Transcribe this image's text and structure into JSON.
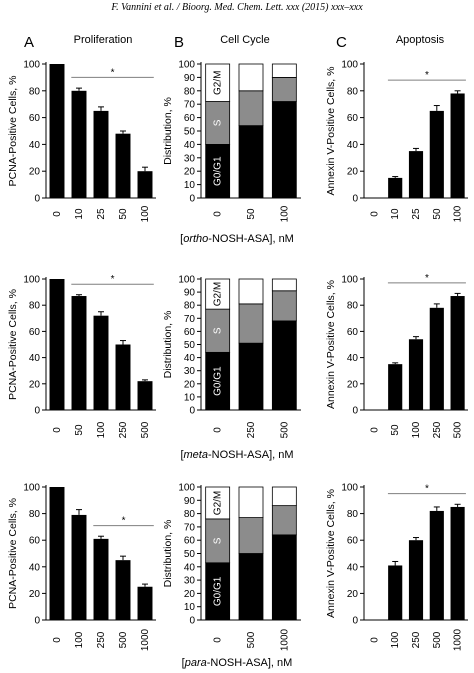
{
  "header": "F. Vannini et al. / Bioorg. Med. Chem. Lett. xxx (2015) xxx–xxx",
  "panel_letters": [
    "A",
    "B",
    "C"
  ],
  "column_titles": [
    "Proliferation",
    "Cell Cycle",
    "Apoptosis"
  ],
  "colors": {
    "bar": "#000000",
    "s_phase": "#8c8c8c",
    "g2m": "#ffffff",
    "line": "#7f7f7f"
  },
  "stack_labels": {
    "g2m": "G2/M",
    "s": "S",
    "g0g1": "G0/G1"
  },
  "significance": "*",
  "chart_data": [
    {
      "type": "bar",
      "row": 0,
      "col": 0,
      "ylabel": "PCNA-Positive Cells, %",
      "ylim": [
        0,
        100
      ],
      "yticks": [
        0,
        20,
        40,
        60,
        80,
        100
      ],
      "categories": [
        "0",
        "10",
        "25",
        "50",
        "100"
      ],
      "values": [
        100,
        80,
        65,
        48,
        20
      ],
      "errors": [
        0,
        2,
        3,
        2,
        3
      ],
      "sig_from": 1
    },
    {
      "type": "stacked_bar",
      "row": 0,
      "col": 1,
      "ylabel": "Distribution, %",
      "ylim": [
        0,
        100
      ],
      "yticks": [
        0,
        10,
        20,
        30,
        40,
        50,
        60,
        70,
        80,
        90,
        100
      ],
      "categories": [
        "0",
        "50",
        "100"
      ],
      "series": [
        {
          "name": "G0/G1",
          "values": [
            40,
            54,
            72
          ]
        },
        {
          "name": "S",
          "values": [
            32,
            26,
            18
          ]
        },
        {
          "name": "G2/M",
          "values": [
            28,
            20,
            10
          ]
        }
      ]
    },
    {
      "type": "bar",
      "row": 0,
      "col": 2,
      "ylabel": "Annexin V-Positive Cells, %",
      "ylim": [
        0,
        100
      ],
      "yticks": [
        0,
        20,
        40,
        60,
        80,
        100
      ],
      "categories": [
        "0",
        "10",
        "25",
        "50",
        "100"
      ],
      "values": [
        0,
        15,
        35,
        65,
        78
      ],
      "errors": [
        0,
        1,
        2,
        4,
        2
      ],
      "sig_from": 1
    },
    {
      "type": "bar",
      "row": 1,
      "col": 0,
      "ylabel": "PCNA-Positive Cells, %",
      "ylim": [
        0,
        100
      ],
      "yticks": [
        0,
        20,
        40,
        60,
        80,
        100
      ],
      "categories": [
        "0",
        "50",
        "100",
        "250",
        "500"
      ],
      "values": [
        100,
        87,
        72,
        50,
        22
      ],
      "errors": [
        0,
        1,
        3,
        3,
        1
      ],
      "sig_from": 1
    },
    {
      "type": "stacked_bar",
      "row": 1,
      "col": 1,
      "ylabel": "Distribution, %",
      "ylim": [
        0,
        100
      ],
      "yticks": [
        0,
        10,
        20,
        30,
        40,
        50,
        60,
        70,
        80,
        90,
        100
      ],
      "categories": [
        "0",
        "250",
        "500"
      ],
      "series": [
        {
          "name": "G0/G1",
          "values": [
            44,
            51,
            68
          ]
        },
        {
          "name": "S",
          "values": [
            33,
            30,
            23
          ]
        },
        {
          "name": "G2/M",
          "values": [
            23,
            19,
            9
          ]
        }
      ]
    },
    {
      "type": "bar",
      "row": 1,
      "col": 2,
      "ylabel": "Annexin V-Positive Cells, %",
      "ylim": [
        0,
        100
      ],
      "yticks": [
        0,
        20,
        40,
        60,
        80,
        100
      ],
      "categories": [
        "0",
        "50",
        "100",
        "250",
        "500"
      ],
      "values": [
        0,
        35,
        54,
        78,
        87
      ],
      "errors": [
        0,
        1,
        2,
        3,
        2
      ],
      "sig_from": 1
    },
    {
      "type": "bar",
      "row": 2,
      "col": 0,
      "ylabel": "PCNA-Positive Cells, %",
      "ylim": [
        0,
        100
      ],
      "yticks": [
        0,
        20,
        40,
        60,
        80,
        100
      ],
      "categories": [
        "0",
        "100",
        "250",
        "500",
        "1000"
      ],
      "values": [
        100,
        79,
        61,
        45,
        25
      ],
      "errors": [
        0,
        4,
        2,
        3,
        2
      ],
      "sig_from": 2
    },
    {
      "type": "stacked_bar",
      "row": 2,
      "col": 1,
      "ylabel": "Distribution, %",
      "ylim": [
        0,
        100
      ],
      "yticks": [
        0,
        10,
        20,
        30,
        40,
        50,
        60,
        70,
        80,
        90,
        100
      ],
      "categories": [
        "0",
        "500",
        "1000"
      ],
      "series": [
        {
          "name": "G0/G1",
          "values": [
            43,
            50,
            64
          ]
        },
        {
          "name": "S",
          "values": [
            33,
            27,
            22
          ]
        },
        {
          "name": "G2/M",
          "values": [
            24,
            23,
            14
          ]
        }
      ]
    },
    {
      "type": "bar",
      "row": 2,
      "col": 2,
      "ylabel": "Annexin V-Positive Cells, %",
      "ylim": [
        0,
        100
      ],
      "yticks": [
        0,
        20,
        40,
        60,
        80,
        100
      ],
      "categories": [
        "0",
        "100",
        "250",
        "500",
        "1000"
      ],
      "values": [
        0,
        41,
        60,
        82,
        85
      ],
      "errors": [
        0,
        3,
        2,
        3,
        2
      ],
      "sig_from": 1
    }
  ],
  "row_xlabels": [
    {
      "prefix": "[",
      "compound": "ortho",
      "suffix": "-NOSH-ASA], nM"
    },
    {
      "prefix": "[",
      "compound": "meta",
      "suffix": "-NOSH-ASA], nM"
    },
    {
      "prefix": "[",
      "compound": "para",
      "suffix": "-NOSH-ASA], nM"
    }
  ]
}
